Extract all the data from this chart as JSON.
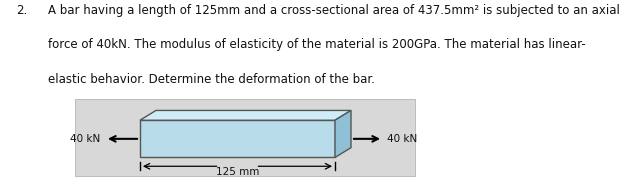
{
  "title_num": "2.",
  "line1": "A bar having a length of 125mm and a cross-sectional area of 437.5mm² is subjected to an axial",
  "line2": "force of 40kN. The modulus of elasticity of the material is 200GPa. The material has linear-",
  "line3": "elastic behavior. Determine the deformation of the bar.",
  "label_left": "40 kN",
  "label_right": "40 kN",
  "dim_label": "125 mm",
  "bar_fill_color": "#b8dcea",
  "bar_top_color": "#d0ecf8",
  "bar_right_color": "#90c0d5",
  "bar_edge_color": "#555555",
  "bg_fill_color": "#d8d8d8",
  "bg_edge_color": "#aaaaaa",
  "text_color": "#111111",
  "fig_width": 6.41,
  "fig_height": 1.79,
  "dpi": 100
}
